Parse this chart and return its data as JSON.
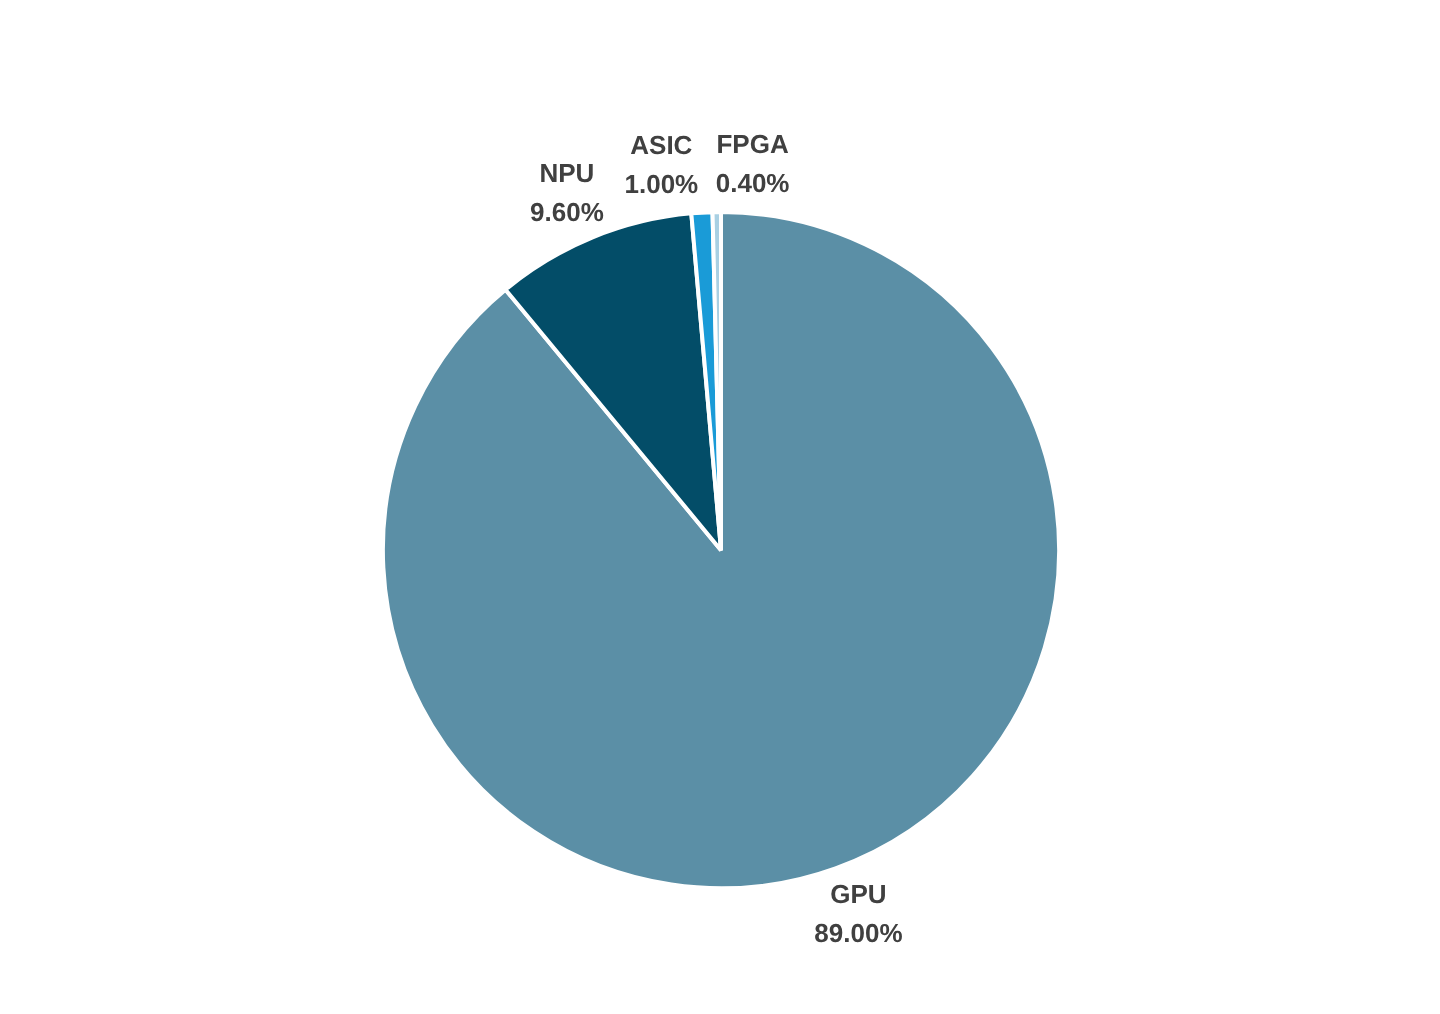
{
  "chart_data": {
    "type": "pie",
    "categories": [
      "GPU",
      "NPU",
      "ASIC",
      "FPGA"
    ],
    "values": [
      89.0,
      9.6,
      1.0,
      0.4
    ],
    "colors": [
      "#5b8fa6",
      "#034d68",
      "#1a9bd7",
      "#a9d0e3"
    ],
    "value_labels": [
      "89.00%",
      "9.60%",
      "1.00%",
      "0.40%"
    ]
  }
}
